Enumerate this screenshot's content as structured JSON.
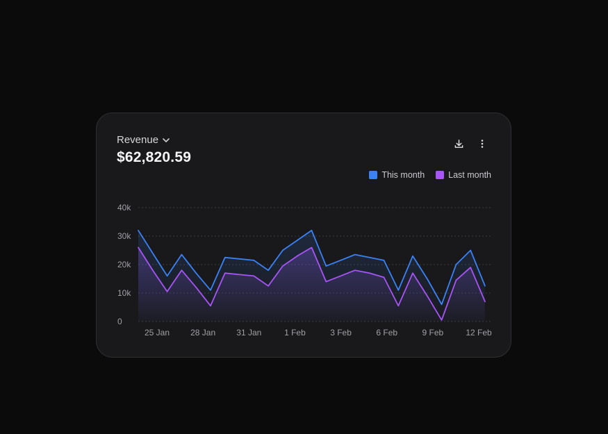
{
  "card": {
    "title": "Revenue",
    "total": "$62,820.59"
  },
  "icons": {
    "title_chevron": "chevron-down-icon",
    "download": "download-icon",
    "more": "more-vertical-icon"
  },
  "colors": {
    "this_month": "#3b82f6",
    "last_month": "#a855f7",
    "grid": "#3c3c42"
  },
  "chart_data": {
    "type": "area",
    "title": "",
    "xlabel": "",
    "ylabel": "",
    "ylim": [
      0,
      40000
    ],
    "y_ticks": [
      {
        "value": 40000,
        "label": "40k"
      },
      {
        "value": 30000,
        "label": "30k"
      },
      {
        "value": 20000,
        "label": "20k"
      },
      {
        "value": 10000,
        "label": "10k"
      },
      {
        "value": 0,
        "label": "0"
      }
    ],
    "x_tick_labels": [
      "25 Jan",
      "28 Jan",
      "31 Jan",
      "1 Feb",
      "3 Feb",
      "6 Feb",
      "9 Feb",
      "12 Feb"
    ],
    "grid": true,
    "legend_position": "top-right",
    "series": [
      {
        "name": "This month",
        "color": "#3b82f6",
        "values": [
          32000,
          24000,
          16000,
          23500,
          17000,
          11000,
          22500,
          22000,
          21500,
          18000,
          25000,
          28500,
          32000,
          19500,
          21500,
          23500,
          22500,
          21500,
          11000,
          23000,
          15000,
          6000,
          20000,
          25000,
          12500
        ]
      },
      {
        "name": "Last month",
        "color": "#a855f7",
        "values": [
          26000,
          18000,
          10500,
          18000,
          12000,
          5500,
          17000,
          16500,
          16000,
          12500,
          19500,
          23000,
          26000,
          14000,
          16000,
          18000,
          17000,
          15500,
          5500,
          17000,
          9000,
          500,
          14500,
          19000,
          7000
        ]
      }
    ]
  }
}
